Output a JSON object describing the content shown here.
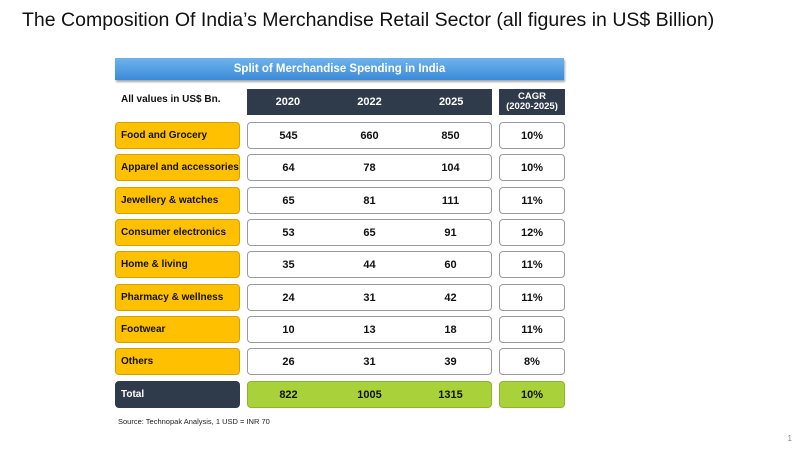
{
  "title": "The Composition Of India’s Merchandise Retail Sector (all figures in US$ Billion)",
  "table_title": "Split of Merchandise Spending in India",
  "units_label": "All values in US$ Bn.",
  "years": [
    "2020",
    "2022",
    "2025"
  ],
  "cagr_header": {
    "line1": "CAGR",
    "line2": "(2020-2025)"
  },
  "rows": [
    {
      "category": "Food and Grocery",
      "values": [
        "545",
        "660",
        "850"
      ],
      "cagr": "10%"
    },
    {
      "category": "Apparel and accessories",
      "values": [
        "64",
        "78",
        "104"
      ],
      "cagr": "10%"
    },
    {
      "category": "Jewellery & watches",
      "values": [
        "65",
        "81",
        "111"
      ],
      "cagr": "11%"
    },
    {
      "category": "Consumer electronics",
      "values": [
        "53",
        "65",
        "91"
      ],
      "cagr": "12%"
    },
    {
      "category": "Home & living",
      "values": [
        "35",
        "44",
        "60"
      ],
      "cagr": "11%"
    },
    {
      "category": "Pharmacy & wellness",
      "values": [
        "24",
        "31",
        "42"
      ],
      "cagr": "11%"
    },
    {
      "category": "Footwear",
      "values": [
        "10",
        "13",
        "18"
      ],
      "cagr": "11%"
    },
    {
      "category": "Others",
      "values": [
        "26",
        "31",
        "39"
      ],
      "cagr": "8%"
    }
  ],
  "total": {
    "category": "Total",
    "values": [
      "822",
      "1005",
      "1315"
    ],
    "cagr": "10%"
  },
  "source": "Source: Technopak Analysis, 1 USD = INR 70",
  "page_number": "1",
  "colors": {
    "category_fill": "#ffc000",
    "header_fill": "#2f3a4a",
    "total_fill": "#a9d13a",
    "banner": "#3c8ad7"
  }
}
